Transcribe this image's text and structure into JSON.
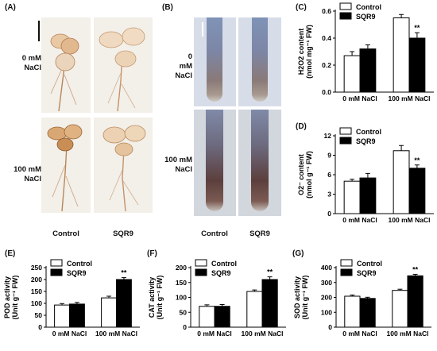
{
  "panel_labels": {
    "a": "(A)",
    "b": "(B)",
    "c": "(C)",
    "d": "(D)",
    "e": "(E)",
    "f": "(F)",
    "g": "(G)"
  },
  "photos": {
    "row_labels": [
      [
        "0 mM",
        "NaCl"
      ],
      [
        "100 mM",
        "NaCl"
      ]
    ],
    "b_row_labels": [
      [
        "0",
        "mM",
        "NaCl"
      ],
      [
        "100 mM",
        "NaCl"
      ]
    ],
    "col_labels": [
      "Control",
      "SQR9"
    ]
  },
  "colors": {
    "control": "#ffffff",
    "sqr9": "#000000",
    "axis": "#000000"
  },
  "chart_data": [
    {
      "id": "c",
      "type": "bar",
      "categories": [
        "0 mM NaCl",
        "100 mM NaCl"
      ],
      "ylabel": [
        "H2O2 content",
        "(nmol mg⁻¹ FW)"
      ],
      "ylim": [
        0,
        0.6
      ],
      "yticks": [
        "0.0",
        "0.2",
        "0.4",
        "0.6"
      ],
      "series": [
        {
          "name": "Control",
          "values": [
            0.27,
            0.55
          ],
          "errors": [
            0.03,
            0.025
          ]
        },
        {
          "name": "SQR9",
          "values": [
            0.32,
            0.4
          ],
          "errors": [
            0.03,
            0.04
          ]
        }
      ],
      "annotations": [
        "",
        "**"
      ]
    },
    {
      "id": "d",
      "type": "bar",
      "categories": [
        "0 mM NaCl",
        "100 mM NaCl"
      ],
      "ylabel": [
        "O2⁻ content",
        "(nmol g⁻¹ FW)"
      ],
      "ylim": [
        0,
        12
      ],
      "yticks": [
        "0",
        "3",
        "6",
        "9",
        "12"
      ],
      "series": [
        {
          "name": "Control",
          "values": [
            5.0,
            9.7
          ],
          "errors": [
            0.3,
            0.8
          ]
        },
        {
          "name": "SQR9",
          "values": [
            5.5,
            7.0
          ],
          "errors": [
            0.7,
            0.5
          ]
        }
      ],
      "annotations": [
        "",
        "**"
      ]
    },
    {
      "id": "e",
      "type": "bar",
      "categories": [
        "0 mM NaCl",
        "100 mM NaCl"
      ],
      "ylabel": [
        "POD activity",
        "(Unit g⁻¹ FW)"
      ],
      "ylim": [
        0,
        250
      ],
      "yticks": [
        "0",
        "50",
        "100",
        "150",
        "200",
        "250"
      ],
      "series": [
        {
          "name": "Control",
          "values": [
            93,
            123
          ],
          "errors": [
            6,
            7
          ]
        },
        {
          "name": "SQR9",
          "values": [
            97,
            200
          ],
          "errors": [
            7,
            8
          ]
        }
      ],
      "annotations": [
        "",
        "**"
      ]
    },
    {
      "id": "f",
      "type": "bar",
      "categories": [
        "0 mM NaCl",
        "100 mM NaCl"
      ],
      "ylabel": [
        "CAT activity",
        "(Unit g⁻¹ FW)"
      ],
      "ylim": [
        0,
        200
      ],
      "yticks": [
        "0",
        "50",
        "100",
        "150",
        "200"
      ],
      "series": [
        {
          "name": "Control",
          "values": [
            70,
            120
          ],
          "errors": [
            5,
            5
          ]
        },
        {
          "name": "SQR9",
          "values": [
            70,
            160
          ],
          "errors": [
            6,
            9
          ]
        }
      ],
      "annotations": [
        "",
        "**"
      ]
    },
    {
      "id": "g",
      "type": "bar",
      "categories": [
        "0 mM NaCl",
        "100 mM NaCl"
      ],
      "ylabel": [
        "SOD activity",
        "(Unit g⁻¹ FW)"
      ],
      "ylim": [
        0,
        400
      ],
      "yticks": [
        "0",
        "100",
        "200",
        "300",
        "400"
      ],
      "series": [
        {
          "name": "Control",
          "values": [
            208,
            247
          ],
          "errors": [
            8,
            8
          ]
        },
        {
          "name": "SQR9",
          "values": [
            193,
            345
          ],
          "errors": [
            8,
            10
          ]
        }
      ],
      "annotations": [
        "",
        "**"
      ]
    }
  ]
}
